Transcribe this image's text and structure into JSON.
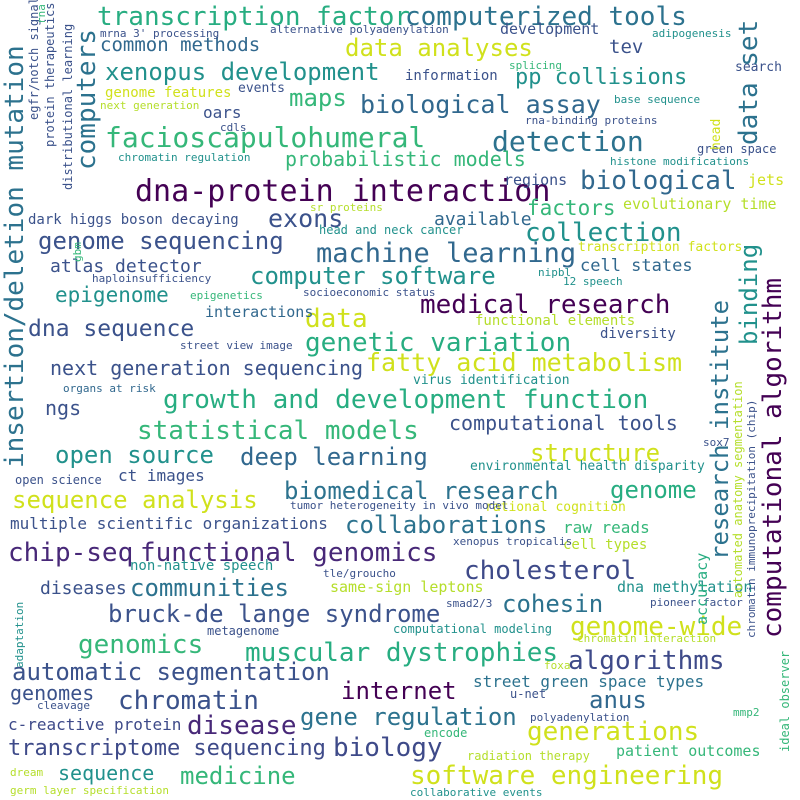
{
  "words": [
    {
      "text": "transcription factor",
      "color": "#27ad81"
    },
    {
      "text": "computerized tools",
      "color": "#2c728e"
    },
    {
      "text": "data analyses",
      "color": "#d0e11c"
    },
    {
      "text": "common methods",
      "color": "#31688e"
    },
    {
      "text": "tev",
      "color": "#3b528b"
    },
    {
      "text": "data set",
      "color": "#2c728e"
    },
    {
      "text": "xenopus development",
      "color": "#21918c"
    },
    {
      "text": "pp collisions",
      "color": "#21918c"
    },
    {
      "text": "computers",
      "color": "#2c728e"
    },
    {
      "text": "information",
      "color": "#3b528b"
    },
    {
      "text": "maps",
      "color": "#35b779"
    },
    {
      "text": "biological assay",
      "color": "#31688e"
    },
    {
      "text": "genome features",
      "color": "#d0e11c"
    },
    {
      "text": "oars",
      "color": "#3b528b"
    },
    {
      "text": "insertion/deletion mutation",
      "color": "#2c728e"
    },
    {
      "text": "facioscapulohumeral",
      "color": "#35b779"
    },
    {
      "text": "detection",
      "color": "#2c728e"
    },
    {
      "text": "probabilistic models",
      "color": "#35b779"
    },
    {
      "text": "biological",
      "color": "#31688e"
    },
    {
      "text": "dna-protein interaction",
      "color": "#440154"
    },
    {
      "text": "exons",
      "color": "#3b528b"
    },
    {
      "text": "factors",
      "color": "#35b779"
    },
    {
      "text": "evolutionary time",
      "color": "#b5de2b"
    },
    {
      "text": "computational algorithm",
      "color": "#440154"
    },
    {
      "text": "available",
      "color": "#31688e"
    },
    {
      "text": "collection",
      "color": "#21918c"
    },
    {
      "text": "genome sequencing",
      "color": "#3b528b"
    },
    {
      "text": "machine learning",
      "color": "#31688e"
    },
    {
      "text": "binding",
      "color": "#21918c"
    },
    {
      "text": "atlas detector",
      "color": "#3b528b"
    },
    {
      "text": "computer software",
      "color": "#21918c"
    },
    {
      "text": "cell states",
      "color": "#31688e"
    },
    {
      "text": "research institute",
      "color": "#2c728e"
    },
    {
      "text": "epigenome",
      "color": "#21918c"
    },
    {
      "text": "medical research",
      "color": "#440154"
    },
    {
      "text": "dna sequence",
      "color": "#3b528b"
    },
    {
      "text": "data",
      "color": "#d0e11c"
    },
    {
      "text": "genetic variation",
      "color": "#27ad81"
    },
    {
      "text": "next generation sequencing",
      "color": "#3b528b"
    },
    {
      "text": "fatty acid metabolism",
      "color": "#d0e11c"
    },
    {
      "text": "ngs",
      "color": "#3b528b"
    },
    {
      "text": "growth and development function",
      "color": "#27ad81"
    },
    {
      "text": "computational tools",
      "color": "#3b528b"
    },
    {
      "text": "statistical models",
      "color": "#35b779"
    },
    {
      "text": "open source",
      "color": "#21918c"
    },
    {
      "text": "deep learning",
      "color": "#31688e"
    },
    {
      "text": "structure",
      "color": "#d0e11c"
    },
    {
      "text": "biomedical research",
      "color": "#2c728e"
    },
    {
      "text": "genome",
      "color": "#27ad81"
    },
    {
      "text": "sequence analysis",
      "color": "#d0e11c"
    },
    {
      "text": "collaborations",
      "color": "#2c728e"
    },
    {
      "text": "chip-seq",
      "color": "#482878"
    },
    {
      "text": "functional genomics",
      "color": "#482878"
    },
    {
      "text": "cholesterol",
      "color": "#3e4a89"
    },
    {
      "text": "communities",
      "color": "#2c728e"
    },
    {
      "text": "cohesin",
      "color": "#2c728e"
    },
    {
      "text": "bruck-de lange syndrome",
      "color": "#3b528b"
    },
    {
      "text": "genome-wide",
      "color": "#d0e11c"
    },
    {
      "text": "genomics",
      "color": "#35b779"
    },
    {
      "text": "muscular dystrophies",
      "color": "#27ad81"
    },
    {
      "text": "algorithms",
      "color": "#3e4a89"
    },
    {
      "text": "automatic segmentation",
      "color": "#3b528b"
    },
    {
      "text": "internet",
      "color": "#440154"
    },
    {
      "text": "anus",
      "color": "#31688e"
    },
    {
      "text": "chromatin",
      "color": "#3b528b"
    },
    {
      "text": "gene regulation",
      "color": "#2c728e"
    },
    {
      "text": "disease",
      "color": "#482878"
    },
    {
      "text": "biology",
      "color": "#3e4a89"
    },
    {
      "text": "generations",
      "color": "#d0e11c"
    },
    {
      "text": "transcriptome sequencing",
      "color": "#3e4a89"
    },
    {
      "text": "medicine",
      "color": "#35b779"
    },
    {
      "text": "software engineering",
      "color": "#d0e11c"
    },
    {
      "text": "sequence",
      "color": "#21918c"
    },
    {
      "text": "genomes",
      "color": "#3b528b"
    },
    {
      "text": "diseases",
      "color": "#3b528b"
    },
    {
      "text": "street green space types",
      "color": "#2c728e"
    },
    {
      "text": "c-reactive protein",
      "color": "#3e4a89"
    },
    {
      "text": "development",
      "color": "#3b528b"
    },
    {
      "text": "ct images",
      "color": "#3b528b"
    },
    {
      "text": "multiple scientific organizations",
      "color": "#3b528b"
    },
    {
      "text": "raw reads",
      "color": "#35b779"
    },
    {
      "text": "cell types",
      "color": "#b5de2b"
    },
    {
      "text": "dna methylation",
      "color": "#21918c"
    },
    {
      "text": "same-sign leptons",
      "color": "#b5de2b"
    },
    {
      "text": "non-native speech",
      "color": "#21918c"
    },
    {
      "text": "tle/groucho",
      "color": "#3b528b"
    },
    {
      "text": "xenopus tropicalis",
      "color": "#3b528b"
    },
    {
      "text": "rational cognition",
      "color": "#d0e11c"
    },
    {
      "text": "accuracy",
      "color": "#27ad81"
    },
    {
      "text": "patient outcomes",
      "color": "#35b779"
    },
    {
      "text": "regions",
      "color": "#3b528b"
    },
    {
      "text": "jets",
      "color": "#d0e11c"
    },
    {
      "text": "interactions",
      "color": "#31688e"
    },
    {
      "text": "functional elements",
      "color": "#b5de2b"
    },
    {
      "text": "diversity",
      "color": "#3b528b"
    },
    {
      "text": "virus identification",
      "color": "#21918c"
    },
    {
      "text": "environmental health disparity",
      "color": "#21918c"
    },
    {
      "text": "open science",
      "color": "#3b528b"
    },
    {
      "text": "tumor heterogeneity in vivo model",
      "color": "#3b528b"
    },
    {
      "text": "sox7",
      "color": "#3b528b"
    },
    {
      "text": "dark higgs boson decaying",
      "color": "#3b528b"
    },
    {
      "text": "head and neck cancer",
      "color": "#21918c"
    },
    {
      "text": "transcription factors",
      "color": "#d0e11c"
    },
    {
      "text": "haploinsufficiency",
      "color": "#3b528b"
    },
    {
      "text": "nipbl",
      "color": "#21918c"
    },
    {
      "text": "epigenetics",
      "color": "#35b779"
    },
    {
      "text": "socioeconomic status",
      "color": "#3b528b"
    },
    {
      "text": "street view image",
      "color": "#3b528b"
    },
    {
      "text": "organs at risk",
      "color": "#31688e"
    },
    {
      "text": "events",
      "color": "#3b528b"
    },
    {
      "text": "cdls",
      "color": "#3b528b"
    },
    {
      "text": "rna-binding proteins",
      "color": "#3b528b"
    },
    {
      "text": "chromatin regulation",
      "color": "#21918c"
    },
    {
      "text": "histone modifications",
      "color": "#21918c"
    },
    {
      "text": "green space",
      "color": "#3b528b"
    },
    {
      "text": "base sequence",
      "color": "#21918c"
    },
    {
      "text": "splicing",
      "color": "#35b779"
    },
    {
      "text": "search",
      "color": "#3b528b"
    },
    {
      "text": "adipogenesis",
      "color": "#21918c"
    },
    {
      "text": "alternative polyadenylation",
      "color": "#3b528b"
    },
    {
      "text": "mrna 3' processing",
      "color": "#3b528b"
    },
    {
      "text": "next generation",
      "color": "#b5de2b"
    },
    {
      "text": "sr proteins",
      "color": "#b5de2b"
    },
    {
      "text": "12 speech",
      "color": "#21918c"
    },
    {
      "text": "pioneer factor",
      "color": "#3b528b"
    },
    {
      "text": "chromatin interaction",
      "color": "#b5de2b"
    },
    {
      "text": "smad2/3",
      "color": "#3b528b"
    },
    {
      "text": "computational modeling",
      "color": "#21918c"
    },
    {
      "text": "metagenome",
      "color": "#3b528b"
    },
    {
      "text": "foxa",
      "color": "#b5de2b"
    },
    {
      "text": "u-net",
      "color": "#3b528b"
    },
    {
      "text": "mmp2",
      "color": "#35b779"
    },
    {
      "text": "cleavage",
      "color": "#3b528b"
    },
    {
      "text": "polyadenylation",
      "color": "#3b528b"
    },
    {
      "text": "encode",
      "color": "#35b779"
    },
    {
      "text": "radiation therapy",
      "color": "#b5de2b"
    },
    {
      "text": "dream",
      "color": "#b5de2b"
    },
    {
      "text": "germ layer specification",
      "color": "#b5de2b"
    },
    {
      "text": "collaborative events",
      "color": "#21918c"
    },
    {
      "text": "head",
      "color": "#d0e11c"
    },
    {
      "text": "gbm",
      "color": "#35b779"
    },
    {
      "text": "egfr/notch signaling",
      "color": "#3b528b"
    },
    {
      "text": "protein therapeutics",
      "color": "#3b528b"
    },
    {
      "text": "distributional learning",
      "color": "#3b528b"
    },
    {
      "text": "rna",
      "color": "#35b779"
    },
    {
      "text": "automated anatomy segmentation",
      "color": "#b5de2b"
    },
    {
      "text": "chromatin immunoprecipitation (chip)",
      "color": "#3b528b"
    },
    {
      "text": "ideal observer",
      "color": "#35b779"
    },
    {
      "text": "adaptation",
      "color": "#21918c"
    }
  ]
}
